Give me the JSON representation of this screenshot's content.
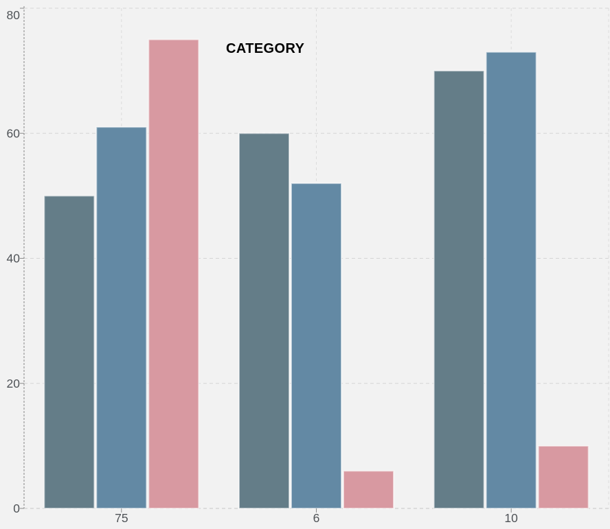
{
  "chart_data": {
    "type": "bar",
    "annotation": "CATEGORY",
    "categories": [
      "75",
      "6",
      "10"
    ],
    "series": [
      {
        "color": "#647d88",
        "values": [
          50,
          60,
          70
        ]
      },
      {
        "color": "#6389a4",
        "values": [
          61,
          52,
          73
        ]
      },
      {
        "color": "#d899a1",
        "values": [
          75,
          6,
          10
        ]
      }
    ],
    "ylim": [
      0,
      80
    ],
    "yticks": [
      0,
      20,
      40,
      60,
      80
    ],
    "grid": true,
    "legend": "none",
    "xlabel": "",
    "ylabel": "",
    "colors": {
      "background": "#f2f2f2",
      "h_gridline": "#d5d5d5",
      "v_gridline": "#dcdcdc",
      "baseline": "#c7c7c7",
      "axis_line": "#aaaaaa",
      "tick_mark": "#8a8a8a",
      "tick_label": "#4f5357",
      "annotation_text": "#000000",
      "bar_stroke": "rgba(255,255,255,0.55)"
    }
  }
}
